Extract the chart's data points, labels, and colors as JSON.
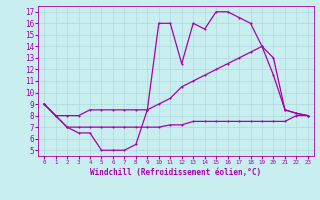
{
  "background_color": "#c8eef0",
  "grid_color": "#b0d8dc",
  "line_color": "#aa00aa",
  "xlabel": "Windchill (Refroidissement éolien,°C)",
  "xlim": [
    -0.5,
    23.5
  ],
  "ylim": [
    4.5,
    17.5
  ],
  "yticks": [
    5,
    6,
    7,
    8,
    9,
    10,
    11,
    12,
    13,
    14,
    15,
    16,
    17
  ],
  "xticks": [
    0,
    1,
    2,
    3,
    4,
    5,
    6,
    7,
    8,
    9,
    10,
    11,
    12,
    13,
    14,
    15,
    16,
    17,
    18,
    19,
    20,
    21,
    22,
    23
  ],
  "line1_x": [
    0,
    1,
    2,
    3,
    4,
    5,
    6,
    7,
    8,
    9,
    10,
    11,
    12,
    13,
    14,
    15,
    16,
    17,
    18,
    19,
    20,
    21,
    22,
    23
  ],
  "line1_y": [
    9.0,
    8.0,
    7.0,
    6.5,
    6.5,
    5.0,
    5.0,
    5.0,
    5.5,
    8.5,
    16.0,
    16.0,
    12.5,
    16.0,
    15.5,
    17.0,
    17.0,
    16.5,
    16.0,
    14.0,
    11.5,
    8.5,
    8.2,
    8.0
  ],
  "line2_x": [
    0,
    1,
    2,
    3,
    4,
    5,
    6,
    7,
    8,
    9,
    10,
    11,
    12,
    13,
    14,
    15,
    16,
    17,
    18,
    19,
    20,
    21,
    22,
    23
  ],
  "line2_y": [
    9.0,
    8.0,
    8.0,
    8.0,
    8.5,
    8.5,
    8.5,
    8.5,
    8.5,
    8.5,
    9.0,
    9.5,
    10.5,
    11.0,
    11.5,
    12.0,
    12.5,
    13.0,
    13.5,
    14.0,
    13.0,
    8.5,
    8.2,
    8.0
  ],
  "line3_x": [
    0,
    1,
    2,
    3,
    4,
    5,
    6,
    7,
    8,
    9,
    10,
    11,
    12,
    13,
    14,
    15,
    16,
    17,
    18,
    19,
    20,
    21,
    22,
    23
  ],
  "line3_y": [
    9.0,
    8.0,
    7.0,
    7.0,
    7.0,
    7.0,
    7.0,
    7.0,
    7.0,
    7.0,
    7.0,
    7.2,
    7.2,
    7.5,
    7.5,
    7.5,
    7.5,
    7.5,
    7.5,
    7.5,
    7.5,
    7.5,
    8.0,
    8.0
  ]
}
